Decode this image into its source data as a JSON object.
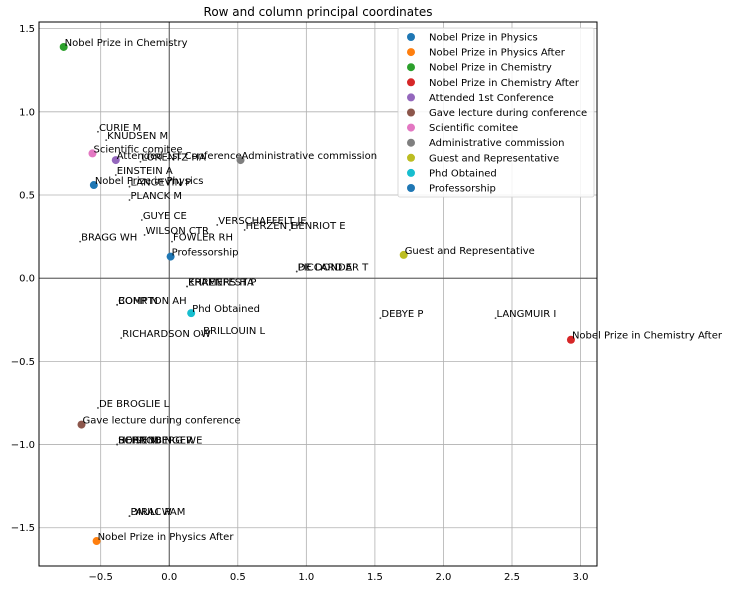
{
  "chart_data": {
    "type": "scatter",
    "title": "Row and column principal coordinates",
    "xlabel": "",
    "ylabel": "",
    "xlim": [
      -0.95,
      3.12
    ],
    "ylim": [
      -1.73,
      1.54
    ],
    "xticks": [
      "0.5",
      "0.0",
      "0.5",
      "1.0",
      "1.5",
      "2.0",
      "2.5",
      "3.0"
    ],
    "xtick_values": [
      -0.5,
      0.0,
      0.5,
      1.0,
      1.5,
      2.0,
      2.5,
      3.0
    ],
    "yticks": [
      "1.5",
      "1.0",
      "0.5",
      "0.0",
      "0.5",
      "1.0",
      "1.5"
    ],
    "ytick_values": [
      1.5,
      1.0,
      0.5,
      0.0,
      -0.5,
      -1.0,
      -1.5
    ],
    "tick_minus_sign": "−",
    "grid": true,
    "legend_position": "top-right",
    "row_points": [
      {
        "label": "CURIE M",
        "x": -0.52,
        "y": 0.88
      },
      {
        "label": "KNUDSEN M",
        "x": -0.46,
        "y": 0.83
      },
      {
        "label": "LORENTZ HA",
        "x": -0.21,
        "y": 0.7
      },
      {
        "label": "EINSTEIN A",
        "x": -0.39,
        "y": 0.62
      },
      {
        "label": "LANGEVIN P",
        "x": -0.29,
        "y": 0.55
      },
      {
        "label": "PLANCK M",
        "x": -0.29,
        "y": 0.47
      },
      {
        "label": "GUYE CE",
        "x": -0.2,
        "y": 0.35
      },
      {
        "label": "VERSCHAFFELT JE",
        "x": 0.35,
        "y": 0.32
      },
      {
        "label": "HERZEN E",
        "x": 0.55,
        "y": 0.29
      },
      {
        "label": "HENRIOT E",
        "x": 0.88,
        "y": 0.29
      },
      {
        "label": "WILSON CTR",
        "x": -0.18,
        "y": 0.26
      },
      {
        "label": "FOWLER RH",
        "x": 0.02,
        "y": 0.22
      },
      {
        "label": "BRAGG WH",
        "x": -0.65,
        "y": 0.22
      },
      {
        "label": "DE DONDER T",
        "x": 0.93,
        "y": 0.04
      },
      {
        "label": "PICCARD A",
        "x": 0.93,
        "y": 0.04
      },
      {
        "label": "KRAMERS HA",
        "x": 0.13,
        "y": -0.05
      },
      {
        "label": "EHRENFEST P",
        "x": 0.13,
        "y": -0.05
      },
      {
        "label": "BOHR N",
        "x": -0.38,
        "y": -0.16
      },
      {
        "label": "COMPTON AH",
        "x": -0.38,
        "y": -0.16
      },
      {
        "label": "DEBYE P",
        "x": 1.54,
        "y": -0.24
      },
      {
        "label": "LANGMUIR I",
        "x": 2.38,
        "y": -0.24
      },
      {
        "label": "BRILLOUIN L",
        "x": 0.24,
        "y": -0.34
      },
      {
        "label": "RICHARDSON OW",
        "x": -0.35,
        "y": -0.36
      },
      {
        "label": "DE BROGLIE L",
        "x": -0.52,
        "y": -0.78
      },
      {
        "label": "BORN M",
        "x": -0.38,
        "y": -1.0
      },
      {
        "label": "SCHRODINGER E",
        "x": -0.38,
        "y": -1.0
      },
      {
        "label": "HEISENBERG W",
        "x": -0.38,
        "y": -1.0
      },
      {
        "label": "PAULI W",
        "x": -0.29,
        "y": -1.43
      },
      {
        "label": "DIRAC PAM",
        "x": -0.29,
        "y": -1.43
      }
    ],
    "series": [
      {
        "name": "Nobel Prize in Physics",
        "color": "#1f77b4",
        "x": -0.55,
        "y": 0.56,
        "label": "Nobel Prize in Physics"
      },
      {
        "name": "Nobel Prize in Physics After",
        "color": "#ff7f0e",
        "x": -0.53,
        "y": -1.58,
        "label": "Nobel Prize in Physics After"
      },
      {
        "name": "Nobel Prize in Chemistry",
        "color": "#2ca02c",
        "x": -0.77,
        "y": 1.39,
        "label": "Nobel Prize in Chemistry"
      },
      {
        "name": "Nobel Prize in Chemistry After",
        "color": "#d62728",
        "x": 2.93,
        "y": -0.37,
        "label": "Nobel Prize in Chemistry After"
      },
      {
        "name": "Attended 1st Conference",
        "color": "#9467bd",
        "x": -0.39,
        "y": 0.71,
        "label": "Attended 1st Conference"
      },
      {
        "name": "Gave lecture during conference",
        "color": "#8c564b",
        "x": -0.64,
        "y": -0.88,
        "label": "Gave lecture during conference"
      },
      {
        "name": "Scientific comitee",
        "color": "#e377c2",
        "x": -0.56,
        "y": 0.75,
        "label": "Scientific comitee"
      },
      {
        "name": "Administrative commission",
        "color": "#7f7f7f",
        "x": 0.52,
        "y": 0.71,
        "label": "Administrative commission"
      },
      {
        "name": "Guest and Representative",
        "color": "#bcbd22",
        "x": 1.71,
        "y": 0.14,
        "label": "Guest and Representative"
      },
      {
        "name": "Phd Obtained",
        "color": "#17becf",
        "x": 0.16,
        "y": -0.21,
        "label": "Phd Obtained"
      },
      {
        "name": "Professorship",
        "color": "#1f77b4",
        "x": 0.01,
        "y": 0.13,
        "label": "Professorship"
      }
    ]
  }
}
